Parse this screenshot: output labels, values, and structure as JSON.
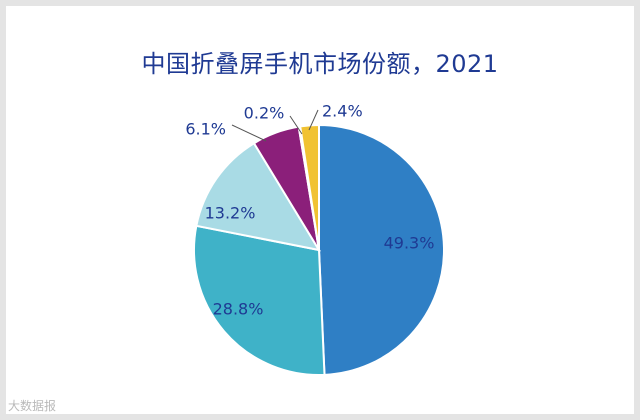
{
  "chart_data": {
    "type": "pie",
    "title": "中国折叠屏手机市场份额，2021",
    "slices": [
      {
        "value": 49.3,
        "label": "49.3%",
        "color": "#2f7fc5"
      },
      {
        "value": 28.8,
        "label": "28.8%",
        "color": "#3fb2c8"
      },
      {
        "value": 13.2,
        "label": "13.2%",
        "color": "#a9dbe5"
      },
      {
        "value": 6.1,
        "label": "6.1%",
        "color": "#8b1f7a"
      },
      {
        "value": 0.2,
        "label": "0.2%",
        "color": "#6b1a86"
      },
      {
        "value": 2.4,
        "label": "2.4%",
        "color": "#f1c232"
      }
    ],
    "start_angle_deg": 0,
    "direction": "clockwise",
    "label_color": "#1f3a93"
  },
  "watermark": "大数据报"
}
